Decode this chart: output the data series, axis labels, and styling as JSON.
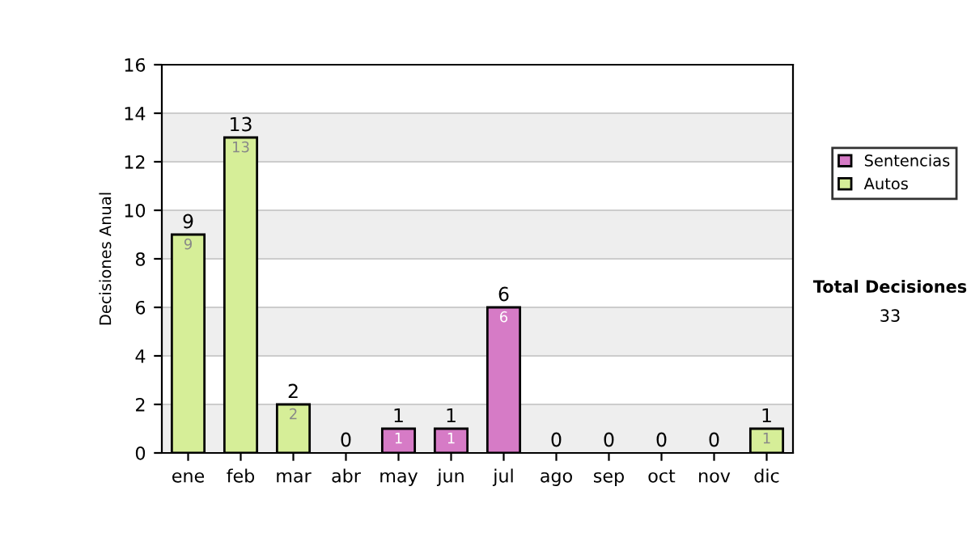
{
  "chart_data": {
    "type": "bar",
    "stacked": true,
    "ylabel": "Decisiones Anual",
    "categories": [
      "ene",
      "feb",
      "mar",
      "abr",
      "may",
      "jun",
      "jul",
      "ago",
      "sep",
      "oct",
      "nov",
      "dic"
    ],
    "series": [
      {
        "name": "Sentencias",
        "color": "#d67bc6",
        "values": [
          0,
          0,
          0,
          0,
          1,
          1,
          6,
          0,
          0,
          0,
          0,
          0
        ],
        "value_labels": [
          null,
          null,
          null,
          null,
          "1",
          "1",
          "6",
          null,
          null,
          null,
          null,
          null
        ]
      },
      {
        "name": "Autos",
        "color": "#d6ee98",
        "values": [
          9,
          13,
          2,
          0,
          0,
          0,
          0,
          0,
          0,
          0,
          0,
          1
        ],
        "value_labels": [
          "9",
          "13",
          "2",
          null,
          null,
          null,
          null,
          null,
          null,
          null,
          null,
          "1"
        ]
      }
    ],
    "totals": [
      "9",
      "13",
      "2",
      "0",
      "1",
      "1",
      "6",
      "0",
      "0",
      "0",
      "0",
      "1"
    ],
    "ylim": [
      0,
      16
    ],
    "yticks": [
      0,
      2,
      4,
      6,
      8,
      10,
      12,
      14,
      16
    ],
    "grid": "y",
    "legend": "right",
    "annotations": [
      "Total Decisiones",
      "33"
    ]
  }
}
